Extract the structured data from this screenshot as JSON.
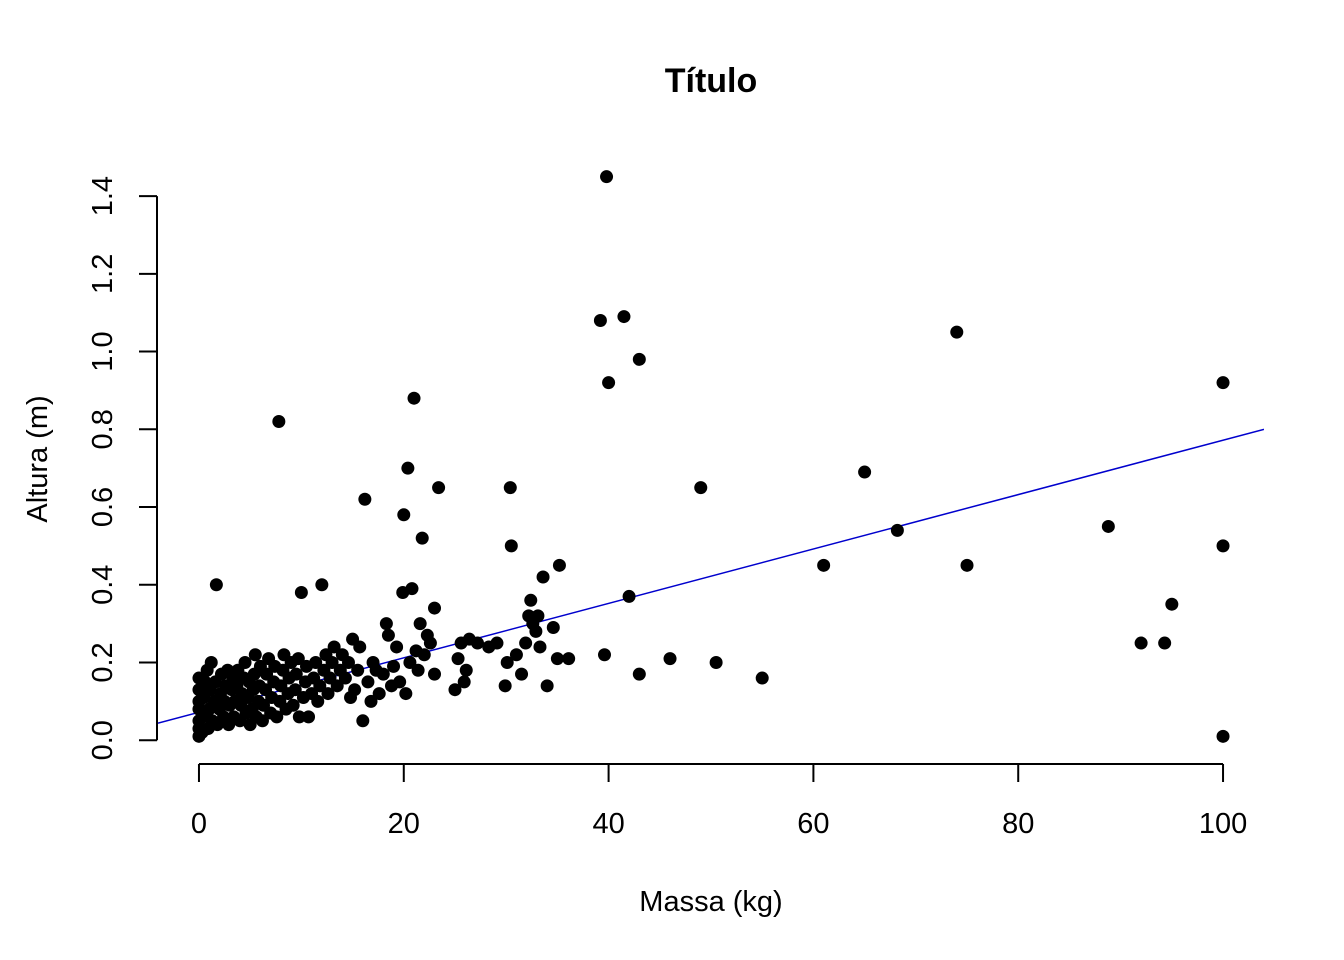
{
  "chart_data": {
    "type": "scatter",
    "title": "Título",
    "xlabel": "Massa (kg)",
    "ylabel": "Altura (m)",
    "xlim": [
      -4,
      104
    ],
    "ylim": [
      -0.02,
      1.48
    ],
    "xticks": [
      0,
      20,
      40,
      60,
      80,
      100
    ],
    "yticks": [
      0.0,
      0.2,
      0.4,
      0.6,
      0.8,
      1.0,
      1.2,
      1.4
    ],
    "xtick_labels": [
      "0",
      "20",
      "40",
      "60",
      "80",
      "100"
    ],
    "ytick_labels": [
      "0.0",
      "0.2",
      "0.4",
      "0.6",
      "0.8",
      "1.0",
      "1.2",
      "1.4"
    ],
    "grid": false,
    "point_color": "#000000",
    "line_color": "#0000CD",
    "regression_line": {
      "intercept": 0.072,
      "slope": 0.007
    },
    "points": [
      [
        0,
        0.01
      ],
      [
        0,
        0.03
      ],
      [
        0,
        0.05
      ],
      [
        0,
        0.08
      ],
      [
        0,
        0.1
      ],
      [
        0,
        0.13
      ],
      [
        0,
        0.16
      ],
      [
        0.3,
        0.02
      ],
      [
        0.4,
        0.06
      ],
      [
        0.5,
        0.11
      ],
      [
        0.6,
        0.15
      ],
      [
        0.8,
        0.18
      ],
      [
        0.9,
        0.03
      ],
      [
        1.0,
        0.08
      ],
      [
        1.1,
        0.13
      ],
      [
        1.2,
        0.2
      ],
      [
        1.3,
        0.05
      ],
      [
        1.5,
        0.1
      ],
      [
        1.6,
        0.15
      ],
      [
        1.7,
        0.4
      ],
      [
        1.8,
        0.04
      ],
      [
        2.0,
        0.08
      ],
      [
        2.1,
        0.12
      ],
      [
        2.2,
        0.17
      ],
      [
        2.4,
        0.06
      ],
      [
        2.5,
        0.1
      ],
      [
        2.6,
        0.14
      ],
      [
        2.8,
        0.18
      ],
      [
        2.9,
        0.04
      ],
      [
        3.0,
        0.09
      ],
      [
        3.2,
        0.13
      ],
      [
        3.3,
        0.16
      ],
      [
        3.4,
        0.06
      ],
      [
        3.5,
        0.1
      ],
      [
        3.7,
        0.14
      ],
      [
        3.8,
        0.18
      ],
      [
        4.0,
        0.05
      ],
      [
        4.1,
        0.09
      ],
      [
        4.2,
        0.12
      ],
      [
        4.4,
        0.16
      ],
      [
        4.5,
        0.2
      ],
      [
        4.6,
        0.07
      ],
      [
        4.8,
        0.11
      ],
      [
        4.9,
        0.15
      ],
      [
        5.0,
        0.04
      ],
      [
        5.2,
        0.08
      ],
      [
        5.3,
        0.13
      ],
      [
        5.4,
        0.17
      ],
      [
        5.5,
        0.22
      ],
      [
        5.6,
        0.06
      ],
      [
        5.8,
        0.1
      ],
      [
        5.9,
        0.14
      ],
      [
        6.0,
        0.19
      ],
      [
        6.2,
        0.05
      ],
      [
        6.3,
        0.09
      ],
      [
        6.5,
        0.13
      ],
      [
        6.6,
        0.17
      ],
      [
        6.8,
        0.21
      ],
      [
        7.0,
        0.07
      ],
      [
        7.1,
        0.11
      ],
      [
        7.3,
        0.15
      ],
      [
        7.4,
        0.19
      ],
      [
        7.6,
        0.06
      ],
      [
        7.8,
        0.82
      ],
      [
        7.9,
        0.1
      ],
      [
        8.0,
        0.14
      ],
      [
        8.2,
        0.18
      ],
      [
        8.3,
        0.22
      ],
      [
        8.5,
        0.08
      ],
      [
        8.7,
        0.12
      ],
      [
        8.8,
        0.16
      ],
      [
        9.0,
        0.2
      ],
      [
        9.2,
        0.09
      ],
      [
        9.4,
        0.13
      ],
      [
        9.5,
        0.17
      ],
      [
        9.7,
        0.21
      ],
      [
        9.8,
        0.06
      ],
      [
        10.0,
        0.38
      ],
      [
        10.2,
        0.11
      ],
      [
        10.4,
        0.15
      ],
      [
        10.5,
        0.19
      ],
      [
        10.7,
        0.06
      ],
      [
        11.0,
        0.12
      ],
      [
        11.2,
        0.16
      ],
      [
        11.4,
        0.2
      ],
      [
        11.6,
        0.1
      ],
      [
        11.8,
        0.14
      ],
      [
        12.0,
        0.4
      ],
      [
        12.2,
        0.18
      ],
      [
        12.4,
        0.22
      ],
      [
        12.6,
        0.12
      ],
      [
        12.8,
        0.16
      ],
      [
        13.0,
        0.2
      ],
      [
        13.2,
        0.24
      ],
      [
        13.5,
        0.14
      ],
      [
        13.8,
        0.18
      ],
      [
        14.0,
        0.22
      ],
      [
        14.3,
        0.16
      ],
      [
        14.6,
        0.2
      ],
      [
        14.8,
        0.11
      ],
      [
        15.0,
        0.26
      ],
      [
        15.2,
        0.13
      ],
      [
        15.5,
        0.18
      ],
      [
        15.7,
        0.24
      ],
      [
        16.0,
        0.05
      ],
      [
        16.2,
        0.62
      ],
      [
        16.5,
        0.15
      ],
      [
        16.8,
        0.1
      ],
      [
        17.0,
        0.2
      ],
      [
        17.3,
        0.18
      ],
      [
        17.6,
        0.12
      ],
      [
        18.0,
        0.17
      ],
      [
        18.3,
        0.3
      ],
      [
        18.5,
        0.27
      ],
      [
        18.8,
        0.14
      ],
      [
        19.0,
        0.19
      ],
      [
        19.3,
        0.24
      ],
      [
        19.6,
        0.15
      ],
      [
        19.9,
        0.38
      ],
      [
        20.0,
        0.58
      ],
      [
        20.2,
        0.12
      ],
      [
        20.4,
        0.7
      ],
      [
        20.6,
        0.2
      ],
      [
        20.8,
        0.39
      ],
      [
        21.0,
        0.88
      ],
      [
        21.2,
        0.23
      ],
      [
        21.4,
        0.18
      ],
      [
        21.6,
        0.3
      ],
      [
        21.8,
        0.52
      ],
      [
        22.0,
        0.22
      ],
      [
        22.3,
        0.27
      ],
      [
        22.6,
        0.25
      ],
      [
        23.0,
        0.34
      ],
      [
        23.0,
        0.17
      ],
      [
        23.4,
        0.65
      ],
      [
        25.0,
        0.13
      ],
      [
        25.3,
        0.21
      ],
      [
        25.6,
        0.25
      ],
      [
        25.9,
        0.15
      ],
      [
        26.1,
        0.18
      ],
      [
        26.4,
        0.26
      ],
      [
        27.2,
        0.25
      ],
      [
        28.3,
        0.24
      ],
      [
        29.1,
        0.25
      ],
      [
        29.9,
        0.14
      ],
      [
        30.1,
        0.2
      ],
      [
        30.4,
        0.65
      ],
      [
        30.5,
        0.5
      ],
      [
        31.0,
        0.22
      ],
      [
        31.5,
        0.17
      ],
      [
        31.9,
        0.25
      ],
      [
        32.2,
        0.32
      ],
      [
        32.4,
        0.36
      ],
      [
        32.6,
        0.3
      ],
      [
        32.9,
        0.28
      ],
      [
        33.1,
        0.32
      ],
      [
        33.3,
        0.24
      ],
      [
        33.6,
        0.42
      ],
      [
        34.0,
        0.14
      ],
      [
        34.6,
        0.29
      ],
      [
        35.0,
        0.21
      ],
      [
        35.2,
        0.45
      ],
      [
        36.1,
        0.21
      ],
      [
        39.2,
        1.08
      ],
      [
        39.6,
        0.22
      ],
      [
        39.8,
        1.45
      ],
      [
        40.0,
        0.92
      ],
      [
        41.5,
        1.09
      ],
      [
        42.0,
        0.37
      ],
      [
        43.0,
        0.17
      ],
      [
        43.0,
        0.98
      ],
      [
        46.0,
        0.21
      ],
      [
        49.0,
        0.65
      ],
      [
        50.5,
        0.2
      ],
      [
        55.0,
        0.16
      ],
      [
        61.0,
        0.45
      ],
      [
        65.0,
        0.69
      ],
      [
        68.2,
        0.54
      ],
      [
        74.0,
        1.05
      ],
      [
        75.0,
        0.45
      ],
      [
        88.8,
        0.55
      ],
      [
        92.0,
        0.25
      ],
      [
        94.3,
        0.25
      ],
      [
        95.0,
        0.35
      ],
      [
        100.0,
        0.92
      ],
      [
        100.0,
        0.5
      ],
      [
        100.0,
        0.01
      ]
    ]
  }
}
